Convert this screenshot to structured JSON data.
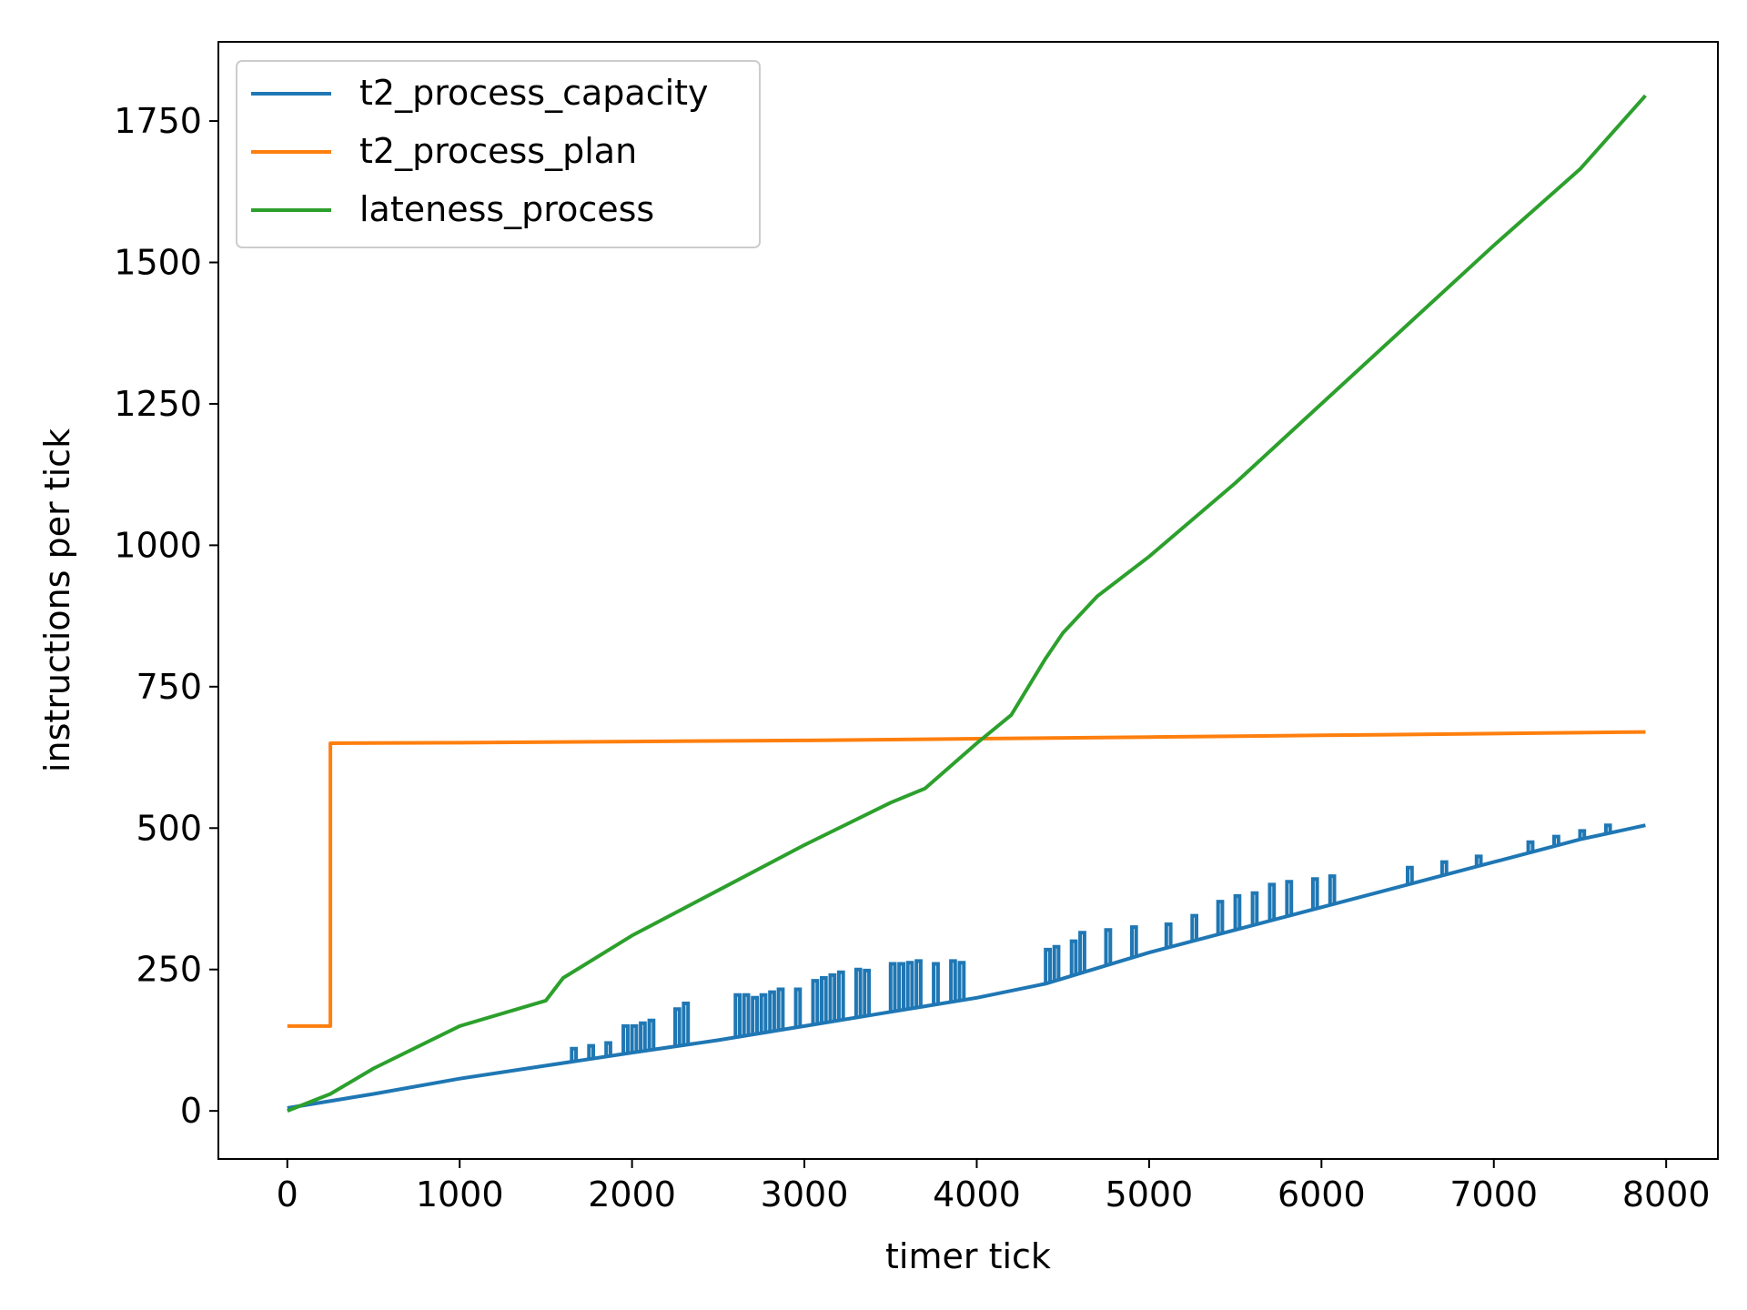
{
  "chart_data": {
    "type": "line",
    "title": "",
    "xlabel": "timer tick",
    "ylabel": "instructions per tick",
    "xlim": [
      -400,
      8300
    ],
    "ylim": [
      -85,
      1890
    ],
    "x_ticks": [
      0,
      1000,
      2000,
      3000,
      4000,
      5000,
      6000,
      7000,
      8000
    ],
    "y_ticks": [
      0,
      250,
      500,
      750,
      1000,
      1250,
      1500,
      1750
    ],
    "x_tick_labels": [
      "0",
      "1000",
      "2000",
      "3000",
      "4000",
      "5000",
      "6000",
      "7000",
      "8000"
    ],
    "y_tick_labels": [
      "0",
      "250",
      "500",
      "750",
      "1000",
      "1250",
      "1500",
      "1750"
    ],
    "grid": false,
    "legend": {
      "position": "top-left"
    },
    "series": [
      {
        "name": "t2_process_capacity",
        "color": "#1f77b4",
        "x": [
          0,
          500,
          1000,
          1500,
          2000,
          2500,
          3000,
          3500,
          4000,
          4400,
          5000,
          5500,
          6000,
          6500,
          7000,
          7500,
          7880
        ],
        "y": [
          5,
          30,
          57,
          80,
          103,
          125,
          150,
          175,
          200,
          225,
          280,
          320,
          360,
          400,
          440,
          480,
          505
        ],
        "spikes": [
          {
            "x": 1650,
            "y": 110
          },
          {
            "x": 1750,
            "y": 115
          },
          {
            "x": 1850,
            "y": 120
          },
          {
            "x": 1950,
            "y": 150
          },
          {
            "x": 2000,
            "y": 150
          },
          {
            "x": 2050,
            "y": 155
          },
          {
            "x": 2100,
            "y": 160
          },
          {
            "x": 2250,
            "y": 180
          },
          {
            "x": 2300,
            "y": 190
          },
          {
            "x": 2600,
            "y": 205
          },
          {
            "x": 2650,
            "y": 205
          },
          {
            "x": 2700,
            "y": 200
          },
          {
            "x": 2750,
            "y": 205
          },
          {
            "x": 2800,
            "y": 210
          },
          {
            "x": 2850,
            "y": 215
          },
          {
            "x": 2950,
            "y": 215
          },
          {
            "x": 3050,
            "y": 230
          },
          {
            "x": 3100,
            "y": 235
          },
          {
            "x": 3150,
            "y": 240
          },
          {
            "x": 3200,
            "y": 245
          },
          {
            "x": 3300,
            "y": 250
          },
          {
            "x": 3350,
            "y": 248
          },
          {
            "x": 3500,
            "y": 260
          },
          {
            "x": 3550,
            "y": 260
          },
          {
            "x": 3600,
            "y": 262
          },
          {
            "x": 3650,
            "y": 265
          },
          {
            "x": 3750,
            "y": 260
          },
          {
            "x": 3850,
            "y": 265
          },
          {
            "x": 3900,
            "y": 262
          },
          {
            "x": 4400,
            "y": 285
          },
          {
            "x": 4450,
            "y": 290
          },
          {
            "x": 4550,
            "y": 300
          },
          {
            "x": 4600,
            "y": 315
          },
          {
            "x": 4750,
            "y": 320
          },
          {
            "x": 4900,
            "y": 325
          },
          {
            "x": 5100,
            "y": 330
          },
          {
            "x": 5250,
            "y": 345
          },
          {
            "x": 5400,
            "y": 370
          },
          {
            "x": 5500,
            "y": 380
          },
          {
            "x": 5600,
            "y": 385
          },
          {
            "x": 5700,
            "y": 400
          },
          {
            "x": 5800,
            "y": 405
          },
          {
            "x": 5950,
            "y": 410
          },
          {
            "x": 6050,
            "y": 415
          },
          {
            "x": 6500,
            "y": 430
          },
          {
            "x": 6700,
            "y": 440
          },
          {
            "x": 6900,
            "y": 450
          },
          {
            "x": 7200,
            "y": 475
          },
          {
            "x": 7350,
            "y": 485
          },
          {
            "x": 7500,
            "y": 495
          },
          {
            "x": 7650,
            "y": 505
          }
        ]
      },
      {
        "name": "t2_process_plan",
        "color": "#ff7f0e",
        "x": [
          0,
          250,
          250,
          1000,
          2000,
          3000,
          4000,
          5000,
          6000,
          7000,
          7880
        ],
        "y": [
          150,
          150,
          650,
          651,
          653,
          655,
          658,
          661,
          664,
          667,
          670
        ]
      },
      {
        "name": "lateness_process",
        "color": "#2ca02c",
        "x": [
          0,
          250,
          500,
          1000,
          1500,
          1600,
          2000,
          2500,
          3000,
          3500,
          3700,
          4000,
          4200,
          4400,
          4500,
          4700,
          5000,
          5500,
          6000,
          6500,
          7000,
          7500,
          7880
        ],
        "y": [
          0,
          30,
          75,
          150,
          195,
          235,
          310,
          390,
          470,
          545,
          570,
          650,
          700,
          800,
          845,
          910,
          980,
          1110,
          1250,
          1390,
          1530,
          1665,
          1795
        ]
      }
    ]
  }
}
